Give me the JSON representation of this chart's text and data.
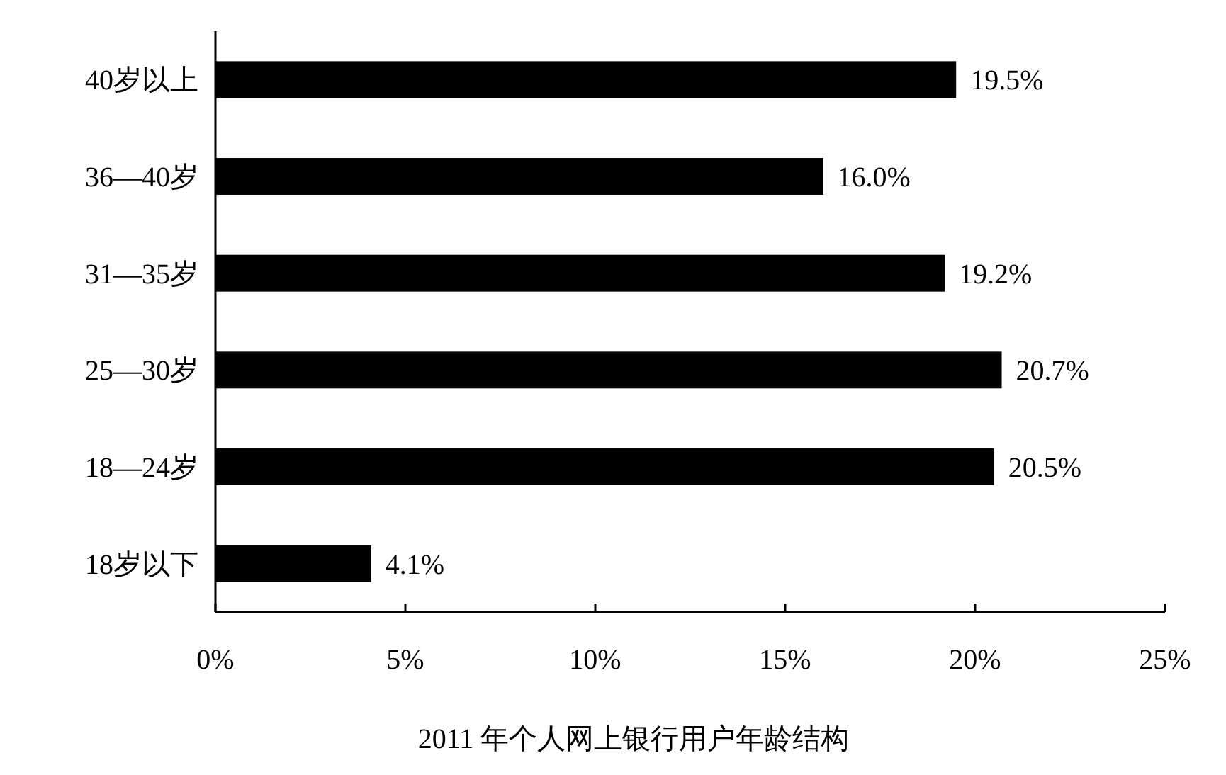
{
  "chart_data": {
    "type": "bar",
    "orientation": "horizontal",
    "title": "2011 年个人网上银行用户年龄结构",
    "categories": [
      "40岁以上",
      "36—40岁",
      "31—35岁",
      "25—30岁",
      "18—24岁",
      "18岁以下"
    ],
    "values": [
      19.5,
      16.0,
      19.2,
      20.7,
      20.5,
      4.1
    ],
    "value_labels": [
      "19.5%",
      "16.0%",
      "19.2%",
      "20.7%",
      "20.5%",
      "4.1%"
    ],
    "color": "#000000",
    "xlim": [
      0,
      25
    ],
    "xticks": [
      {
        "value": 0,
        "label": "0%"
      },
      {
        "value": 5,
        "label": "5%"
      },
      {
        "value": 10,
        "label": "10%"
      },
      {
        "value": 15,
        "label": "15%"
      },
      {
        "value": 20,
        "label": "20%"
      },
      {
        "value": 25,
        "label": "25%"
      }
    ],
    "grid": false
  }
}
